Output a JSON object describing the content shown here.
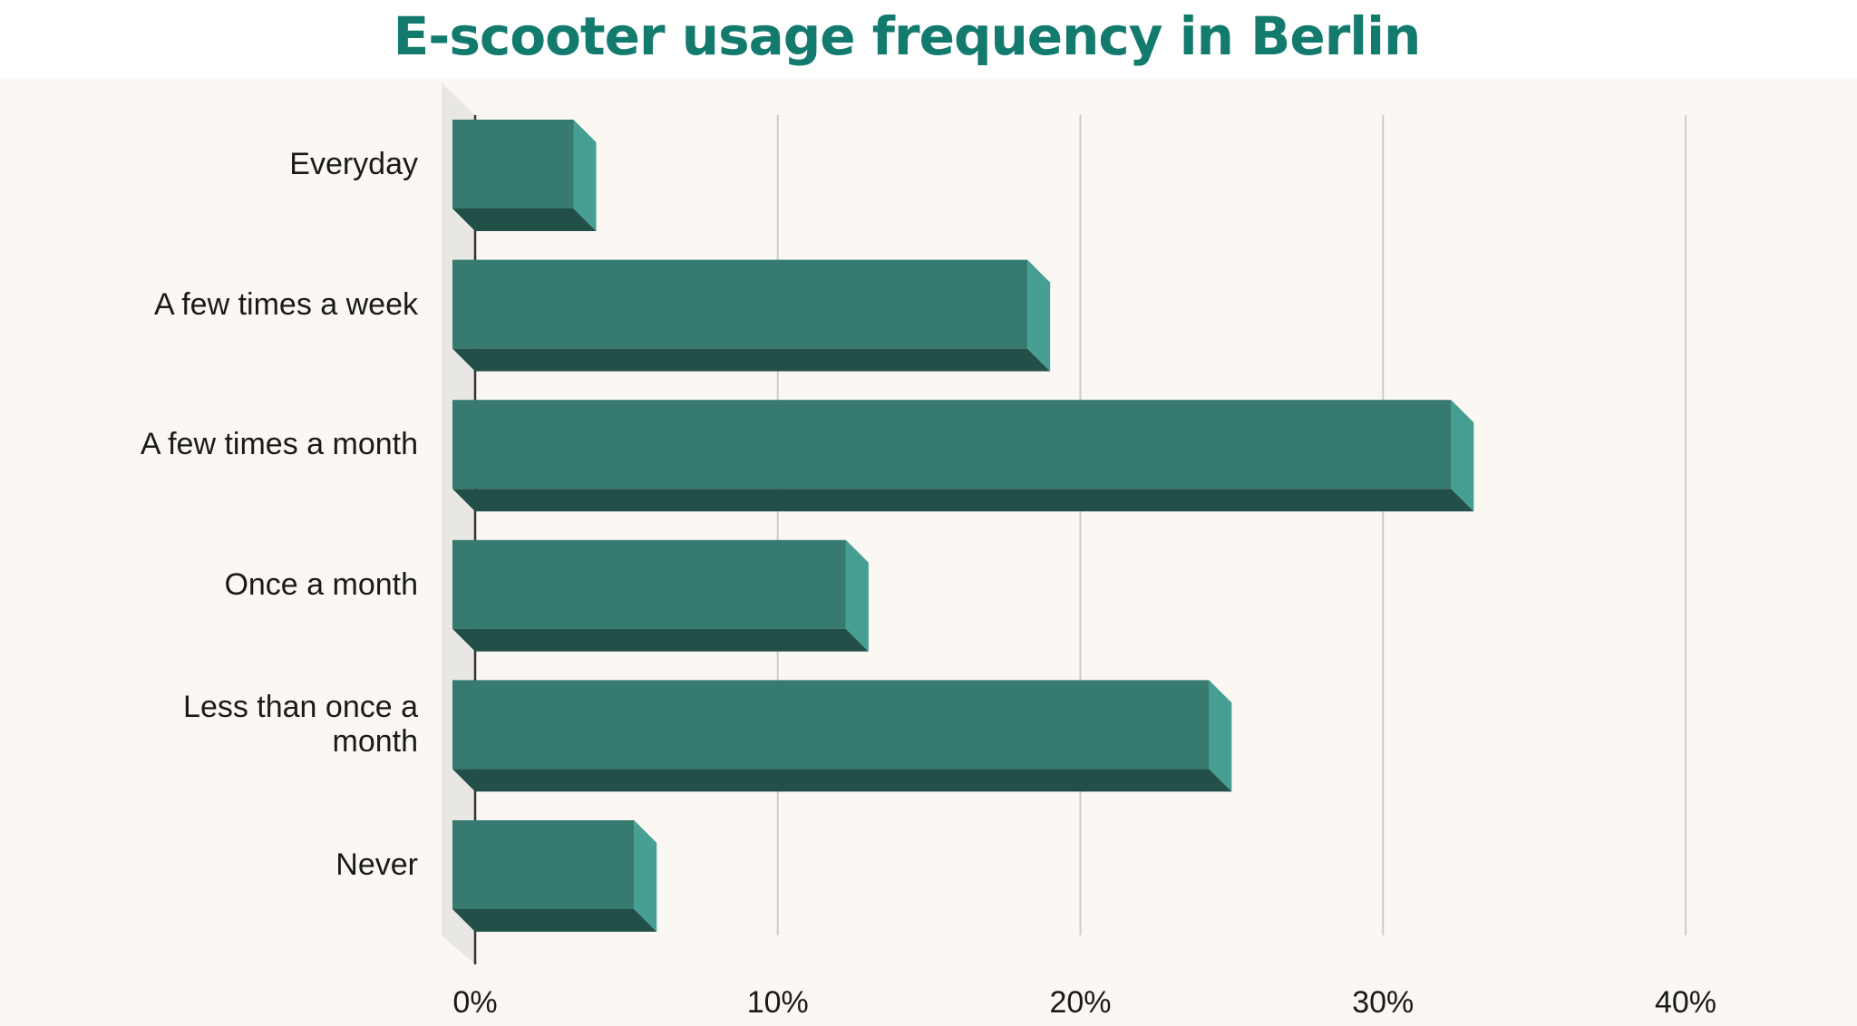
{
  "chart_data": {
    "type": "bar",
    "orientation": "horizontal",
    "title": "E-scooter usage frequency in Berlin",
    "categories": [
      "Everyday",
      "A few times a week",
      "A few times a month",
      "Once a month",
      "Less than once a month",
      "Never"
    ],
    "values": [
      4,
      19,
      33,
      13,
      25,
      6
    ],
    "color": "#367a70",
    "xlim": [
      0,
      40
    ],
    "xticks": [
      {
        "value": 0,
        "label": "0%"
      },
      {
        "value": 10,
        "label": "10%"
      },
      {
        "value": 20,
        "label": "20%"
      },
      {
        "value": 30,
        "label": "30%"
      },
      {
        "value": 40,
        "label": "40%"
      }
    ],
    "grid": true
  }
}
